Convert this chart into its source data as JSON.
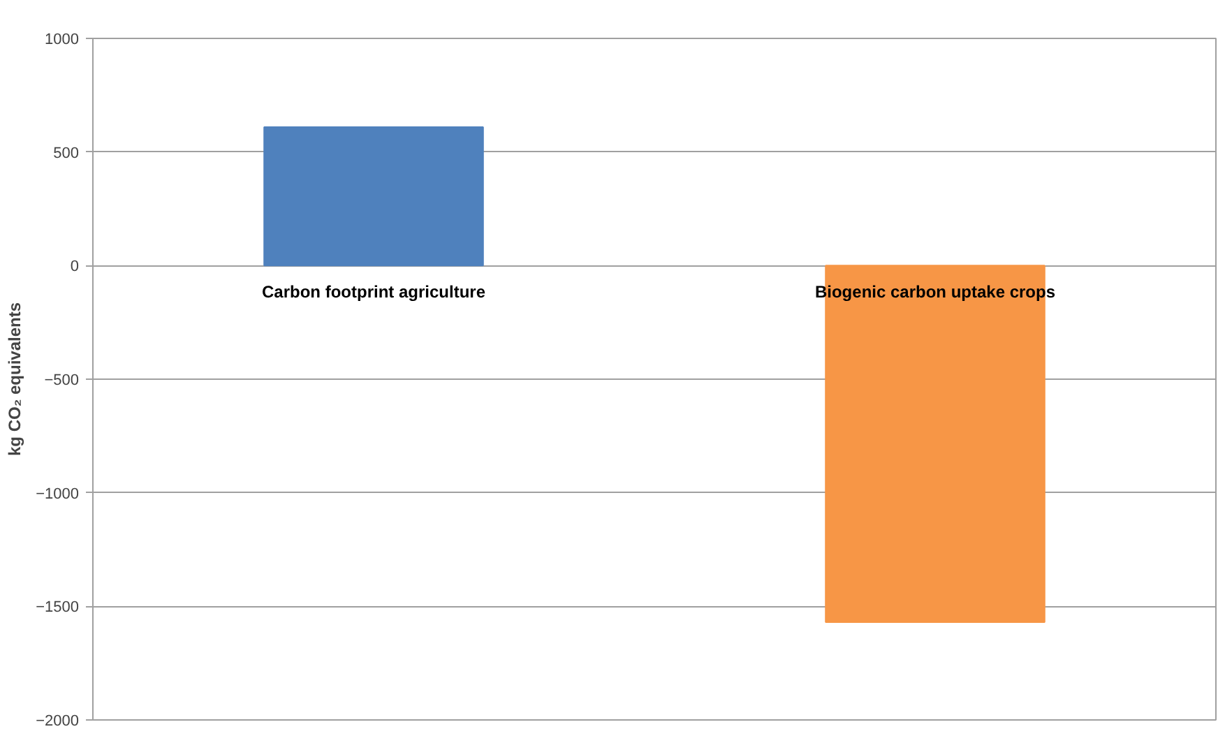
{
  "chart_data": {
    "type": "bar",
    "ylabel": "kg CO₂ equivalents",
    "categories": [
      "Carbon footprint agriculture",
      "Biogenic carbon uptake crops"
    ],
    "values": [
      610,
      -1570
    ],
    "colors": [
      "#4f81bd",
      "#f79646"
    ],
    "ylim": [
      -2000,
      1000
    ],
    "yticks": [
      -2000,
      -1500,
      -1000,
      -500,
      0,
      500,
      1000
    ],
    "grid": "y"
  }
}
